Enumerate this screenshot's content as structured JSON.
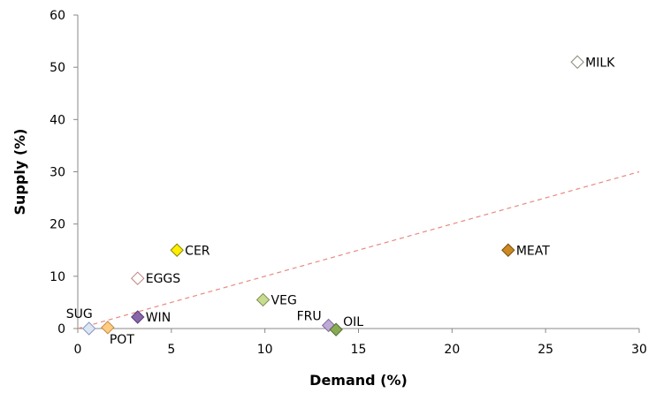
{
  "chart_data": {
    "type": "scatter",
    "title": "",
    "xlabel": "Demand (%)",
    "ylabel": "Supply (%)",
    "xlim": [
      0,
      30
    ],
    "ylim": [
      0,
      60
    ],
    "xticks": [
      "0",
      "5",
      "10",
      "15",
      "20",
      "25",
      "30"
    ],
    "yticks": [
      "0",
      "10",
      "20",
      "30",
      "40",
      "50",
      "60"
    ],
    "grid": false,
    "legend": "none",
    "points": [
      {
        "label": "MILK",
        "x": 26.7,
        "y": 51.0,
        "fill": "#ffffff",
        "stroke": "#8a8a7a"
      },
      {
        "label": "MEAT",
        "x": 23.0,
        "y": 15.0,
        "fill": "#cc8822",
        "stroke": "#7a5010"
      },
      {
        "label": "CER",
        "x": 5.3,
        "y": 15.0,
        "fill": "#ffee00",
        "stroke": "#888800"
      },
      {
        "label": "EGGS",
        "x": 3.2,
        "y": 9.6,
        "fill": "#ffffff",
        "stroke": "#c08080"
      },
      {
        "label": "VEG",
        "x": 9.9,
        "y": 5.5,
        "fill": "#c8dc90",
        "stroke": "#7a8a50"
      },
      {
        "label": "WIN",
        "x": 3.2,
        "y": 2.2,
        "fill": "#8866aa",
        "stroke": "#553a77"
      },
      {
        "label": "FRU",
        "x": 13.4,
        "y": 0.6,
        "fill": "#c0a8d8",
        "stroke": "#7a6a9a"
      },
      {
        "label": "OIL",
        "x": 13.8,
        "y": -0.2,
        "fill": "#88aa55",
        "stroke": "#506a30"
      },
      {
        "label": "SUG",
        "x": 0.6,
        "y": 0.0,
        "fill": "#dde6f5",
        "stroke": "#8899bb"
      },
      {
        "label": "POT",
        "x": 1.6,
        "y": 0.2,
        "fill": "#ffcc80",
        "stroke": "#c08840"
      }
    ],
    "reference_line": {
      "x": [
        0,
        30
      ],
      "y": [
        0,
        30
      ],
      "color": "#e88a80",
      "style": "dashed"
    }
  }
}
